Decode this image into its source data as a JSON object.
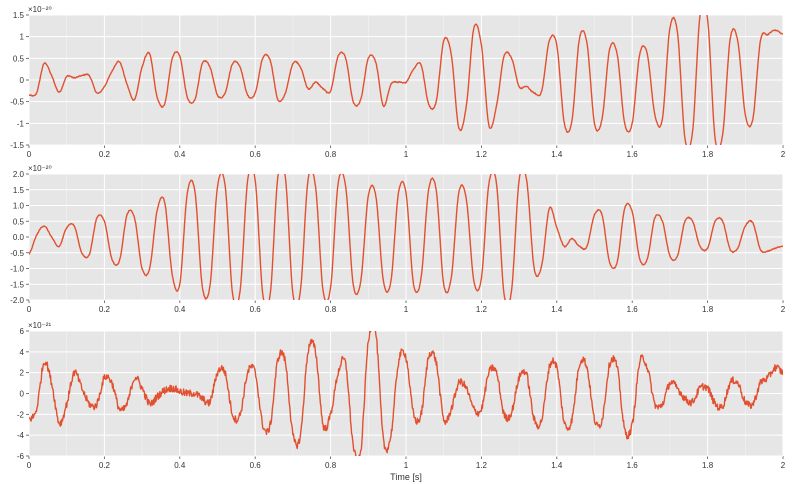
{
  "chart_data": [
    {
      "type": "line",
      "exponent_label": "×10⁻²⁰",
      "xlabel": "",
      "xlim": [
        0,
        2
      ],
      "ylim": [
        -1.5,
        1.5
      ],
      "x_ticks": [
        "0",
        "0.2",
        "0.4",
        "0.6",
        "0.8",
        "1",
        "1.2",
        "1.4",
        "1.6",
        "1.8",
        "2"
      ],
      "y_ticks": [
        "-1.5",
        "-1",
        "-0.5",
        "0",
        "0.5",
        "1",
        "1.5"
      ],
      "grid": true,
      "series_color": "#e2502f",
      "background": "#e6e6e6",
      "noise": 0.012,
      "series": [
        {
          "x": [
            0,
            0.02,
            0.04,
            0.06,
            0.08,
            0.1,
            0.12,
            0.14,
            0.16,
            0.18,
            0.2,
            0.22,
            0.24,
            0.26,
            0.28,
            0.3,
            0.32,
            0.34,
            0.36,
            0.38,
            0.4,
            0.42,
            0.44,
            0.46,
            0.48,
            0.5,
            0.52,
            0.54,
            0.56,
            0.58,
            0.6,
            0.62,
            0.64,
            0.66,
            0.68,
            0.7,
            0.72,
            0.74,
            0.76,
            0.78,
            0.8,
            0.82,
            0.84,
            0.86,
            0.88,
            0.9,
            0.92,
            0.94,
            0.96,
            0.98,
            1.0,
            1.02,
            1.04,
            1.06,
            1.08,
            1.1,
            1.12,
            1.14,
            1.16,
            1.18,
            1.2,
            1.22,
            1.24,
            1.26,
            1.28,
            1.3,
            1.32,
            1.34,
            1.36,
            1.38,
            1.4,
            1.42,
            1.44,
            1.46,
            1.48,
            1.5,
            1.52,
            1.54,
            1.56,
            1.58,
            1.6,
            1.62,
            1.64,
            1.66,
            1.68,
            1.7,
            1.72,
            1.74,
            1.76,
            1.78,
            1.8,
            1.82,
            1.84,
            1.86,
            1.88,
            1.9,
            1.92,
            1.94,
            1.96,
            1.98,
            2.0
          ],
          "y": [
            -0.35,
            -0.3,
            0.38,
            0.1,
            -0.28,
            0.08,
            0.05,
            0.1,
            0.1,
            -0.3,
            -0.15,
            0.2,
            0.42,
            -0.1,
            -0.45,
            0.3,
            0.6,
            -0.4,
            -0.55,
            0.5,
            0.55,
            -0.4,
            -0.45,
            0.38,
            0.3,
            -0.35,
            -0.3,
            0.38,
            0.3,
            -0.35,
            -0.3,
            0.5,
            0.45,
            -0.45,
            -0.3,
            0.38,
            0.3,
            -0.2,
            -0.05,
            -0.2,
            -0.25,
            0.55,
            0.5,
            -0.5,
            -0.45,
            0.5,
            0.4,
            -0.6,
            -0.1,
            -0.05,
            -0.05,
            0.25,
            0.35,
            -0.55,
            -0.5,
            0.9,
            0.6,
            -1.1,
            -0.6,
            1.2,
            0.8,
            -1.05,
            -0.6,
            0.55,
            0.5,
            -0.15,
            -0.15,
            -0.3,
            -0.25,
            0.9,
            0.8,
            -1.0,
            -0.95,
            0.95,
            0.85,
            -1.0,
            -0.9,
            0.7,
            0.6,
            -1.0,
            -1.0,
            0.6,
            0.6,
            -0.8,
            -0.9,
            1.2,
            1.1,
            -1.35,
            -1.2,
            1.5,
            1.4,
            -1.35,
            -1.25,
            0.95,
            0.9,
            -0.8,
            -0.9,
            0.9,
            1.05,
            1.15,
            1.05
          ]
        }
      ]
    },
    {
      "type": "line",
      "exponent_label": "×10⁻²⁰",
      "xlabel": "",
      "xlim": [
        0,
        2
      ],
      "ylim": [
        -2.0,
        2.0
      ],
      "x_ticks": [
        "0",
        "0.2",
        "0.4",
        "0.6",
        "0.8",
        "1",
        "1.2",
        "1.4",
        "1.6",
        "1.8",
        "2"
      ],
      "y_ticks": [
        "-2.0",
        "-1.5",
        "-1.0",
        "-0.5",
        "0.0",
        "0.5",
        "1.0",
        "1.5",
        "2.0"
      ],
      "grid": true,
      "series_color": "#e2502f",
      "background": "#e6e6e6",
      "noise": 0.015,
      "series": [
        {
          "x": [
            0,
            0.02,
            0.04,
            0.06,
            0.08,
            0.1,
            0.12,
            0.14,
            0.16,
            0.18,
            0.2,
            0.22,
            0.24,
            0.26,
            0.28,
            0.3,
            0.32,
            0.34,
            0.36,
            0.38,
            0.4,
            0.42,
            0.44,
            0.46,
            0.48,
            0.5,
            0.52,
            0.54,
            0.56,
            0.58,
            0.6,
            0.62,
            0.64,
            0.66,
            0.68,
            0.7,
            0.72,
            0.74,
            0.76,
            0.78,
            0.8,
            0.82,
            0.84,
            0.86,
            0.88,
            0.9,
            0.92,
            0.94,
            0.96,
            0.98,
            1.0,
            1.02,
            1.04,
            1.06,
            1.08,
            1.1,
            1.12,
            1.14,
            1.16,
            1.18,
            1.2,
            1.22,
            1.24,
            1.26,
            1.28,
            1.3,
            1.32,
            1.34,
            1.36,
            1.38,
            1.4,
            1.42,
            1.44,
            1.46,
            1.48,
            1.5,
            1.52,
            1.54,
            1.56,
            1.58,
            1.6,
            1.62,
            1.64,
            1.66,
            1.68,
            1.7,
            1.72,
            1.74,
            1.76,
            1.78,
            1.8,
            1.82,
            1.84,
            1.86,
            1.88,
            1.9,
            1.92,
            1.94,
            1.96,
            1.98,
            2.0
          ],
          "y": [
            -0.55,
            0.05,
            0.35,
            0.0,
            -0.3,
            0.3,
            0.35,
            -0.5,
            -0.55,
            0.6,
            0.5,
            -0.7,
            -0.75,
            0.7,
            0.6,
            -1.0,
            -1.0,
            0.85,
            1.1,
            -1.2,
            -1.5,
            1.4,
            1.45,
            -1.6,
            -1.55,
            1.6,
            1.65,
            -1.8,
            -1.7,
            1.8,
            1.8,
            -1.8,
            -1.8,
            1.9,
            1.9,
            -1.8,
            -1.7,
            1.8,
            1.6,
            -1.7,
            -1.6,
            1.7,
            1.6,
            -1.5,
            -1.4,
            1.3,
            1.3,
            -1.4,
            -1.4,
            1.4,
            1.4,
            -1.5,
            -1.3,
            1.5,
            1.5,
            -1.5,
            -1.3,
            1.4,
            1.2,
            -1.4,
            -1.3,
            1.7,
            1.7,
            -1.8,
            -1.7,
            1.8,
            1.8,
            -1.0,
            -0.9,
            0.9,
            0.3,
            -0.3,
            -0.05,
            -0.3,
            -0.3,
            0.7,
            0.7,
            -0.8,
            -0.8,
            0.9,
            0.8,
            -0.7,
            -0.7,
            0.6,
            0.5,
            -0.6,
            -0.6,
            0.5,
            0.5,
            -0.3,
            -0.35,
            0.5,
            0.5,
            -0.4,
            -0.35,
            0.35,
            0.45,
            -0.4,
            -0.45,
            -0.35,
            -0.3
          ]
        }
      ]
    },
    {
      "type": "line",
      "exponent_label": "×10⁻²¹",
      "xlabel": "Time [s]",
      "xlim": [
        0,
        2
      ],
      "ylim": [
        -6,
        6
      ],
      "x_ticks": [
        "0",
        "0.2",
        "0.4",
        "0.6",
        "0.8",
        "1",
        "1.2",
        "1.4",
        "1.6",
        "1.8",
        "2"
      ],
      "y_ticks": [
        "-6",
        "-4",
        "-2",
        "0",
        "2",
        "4",
        "6"
      ],
      "grid": true,
      "series_color": "#e2502f",
      "background": "#e6e6e6",
      "noise": 0.35,
      "series": [
        {
          "x": [
            0,
            0.02,
            0.04,
            0.06,
            0.08,
            0.1,
            0.12,
            0.14,
            0.16,
            0.18,
            0.2,
            0.22,
            0.24,
            0.26,
            0.28,
            0.3,
            0.32,
            0.34,
            0.36,
            0.38,
            0.4,
            0.42,
            0.44,
            0.46,
            0.48,
            0.5,
            0.52,
            0.54,
            0.56,
            0.58,
            0.6,
            0.62,
            0.64,
            0.66,
            0.68,
            0.7,
            0.72,
            0.74,
            0.76,
            0.78,
            0.8,
            0.82,
            0.84,
            0.86,
            0.88,
            0.9,
            0.92,
            0.94,
            0.96,
            0.98,
            1.0,
            1.02,
            1.04,
            1.06,
            1.08,
            1.1,
            1.12,
            1.14,
            1.16,
            1.18,
            1.2,
            1.22,
            1.24,
            1.26,
            1.28,
            1.3,
            1.32,
            1.34,
            1.36,
            1.38,
            1.4,
            1.42,
            1.44,
            1.46,
            1.48,
            1.5,
            1.52,
            1.54,
            1.56,
            1.58,
            1.6,
            1.62,
            1.64,
            1.66,
            1.68,
            1.7,
            1.72,
            1.74,
            1.76,
            1.78,
            1.8,
            1.82,
            1.84,
            1.86,
            1.88,
            1.9,
            1.92,
            1.94,
            1.96,
            1.98,
            2.0
          ],
          "y": [
            -2.5,
            -1.5,
            3.0,
            1.0,
            -2.8,
            -1.0,
            2.0,
            0.5,
            -1.0,
            -1.0,
            1.5,
            1.0,
            -1.5,
            -1.0,
            1.5,
            0.5,
            -1.0,
            -0.3,
            0.3,
            0.5,
            0.2,
            0.0,
            0.0,
            -0.5,
            -0.8,
            2.0,
            2.0,
            -2.0,
            -2.0,
            2.0,
            2.0,
            -3.0,
            -3.0,
            3.2,
            3.0,
            -4.0,
            -4.0,
            4.0,
            4.0,
            -3.0,
            -2.0,
            2.0,
            2.8,
            -5.0,
            -5.5,
            5.0,
            5.8,
            -4.5,
            -4.0,
            3.0,
            3.5,
            -2.0,
            -2.0,
            3.5,
            3.0,
            -2.5,
            -1.5,
            1.0,
            0.5,
            -1.5,
            -1.5,
            2.0,
            2.0,
            -2.0,
            -1.8,
            1.5,
            1.8,
            -2.5,
            -2.5,
            2.5,
            2.5,
            -2.8,
            -2.5,
            2.8,
            2.5,
            -2.5,
            -2.5,
            2.8,
            2.5,
            -3.5,
            -3.0,
            3.0,
            2.5,
            -1.0,
            -1.0,
            1.0,
            0.5,
            -0.5,
            -0.8,
            0.5,
            0.5,
            -1.0,
            -1.2,
            1.0,
            1.0,
            -0.8,
            -1.0,
            1.0,
            1.5,
            2.5,
            2.0
          ]
        }
      ]
    }
  ]
}
